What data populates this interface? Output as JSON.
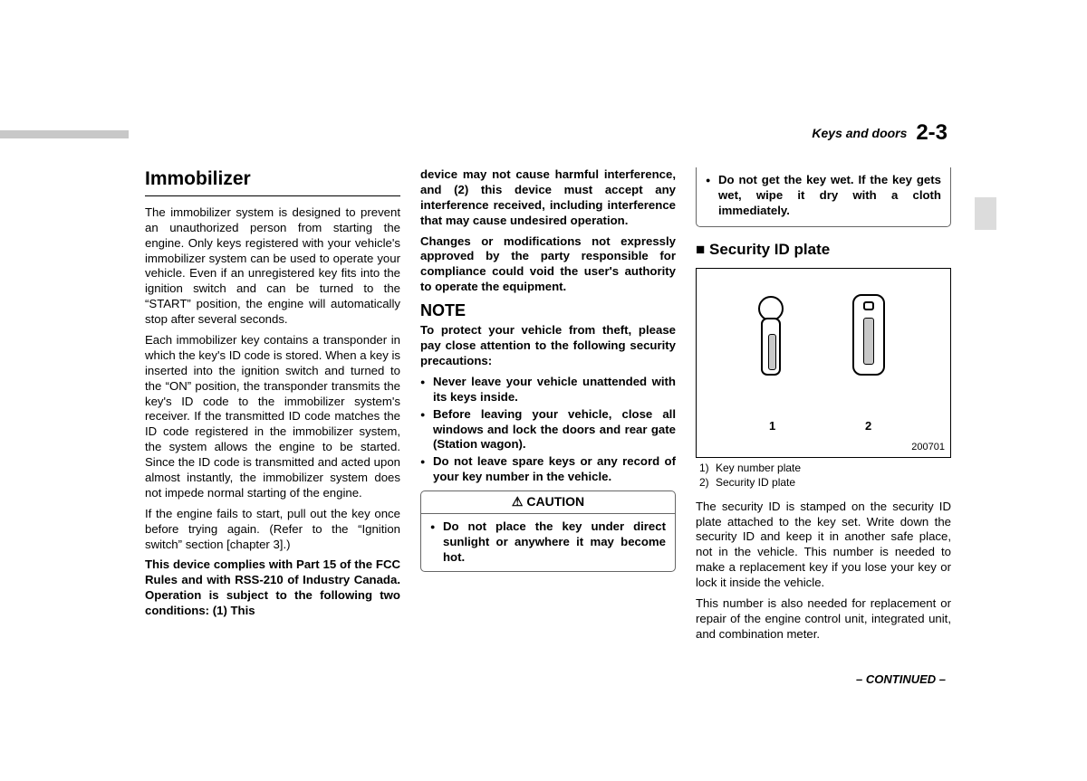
{
  "header": {
    "section": "Keys and doors",
    "page": "2-3"
  },
  "col1": {
    "title": "Immobilizer",
    "p1": "The immobilizer system is designed to prevent an unauthorized person from starting the engine. Only keys registered with your vehicle's immobilizer system can be used to operate your vehicle. Even if an unregistered key fits into the ignition switch and can be turned to the “START” position, the engine will automatically stop after several seconds.",
    "p2": "Each immobilizer key contains a transponder in which the key's ID code is stored. When a key is inserted into the ignition switch and turned to the “ON” position, the transponder transmits the key's ID code to the immobilizer system's receiver. If the transmitted ID code matches the ID code registered in the immobilizer system, the system allows the engine to be started. Since the ID code is transmitted and acted upon almost instantly, the immobilizer system does not impede normal starting of the engine.",
    "p3": "If the engine fails to start, pull out the key once before trying again. (Refer to the “Ignition switch” section [chapter 3].)",
    "p4": "This device complies with Part 15 of the FCC Rules and with RSS-210 of Industry Canada. Operation is subject to the following two conditions: (1) This"
  },
  "col2": {
    "p1": "device may not cause harmful interference, and (2) this device must accept any interference received, including interference that may cause undesired operation.",
    "p2": "Changes or modifications not expressly approved by the party responsible for compliance could void the user's authority to operate the equipment.",
    "note_head": "NOTE",
    "note_intro": "To protect your vehicle from theft, please pay close attention to the following security precautions:",
    "b1": "Never leave your vehicle unattended with its keys inside.",
    "b2": "Before leaving your vehicle, close all windows and lock the doors and rear gate (Station wagon).",
    "b3": "Do not leave spare keys or any record of your key number in the vehicle.",
    "caution_label": "CAUTION",
    "c1": "Do not place the key under direct sunlight or anywhere it may become hot."
  },
  "col3": {
    "top1": "Do not get the key wet. If the key gets wet, wipe it dry with a cloth immediately.",
    "subhead": "Security ID plate",
    "fig_code": "200701",
    "label1": "1",
    "label2": "2",
    "legend1": "Key number plate",
    "legend2": "Security ID plate",
    "p1": "The security ID is stamped on the security ID plate attached to the key set. Write down the security ID and keep it in another safe place, not in the vehicle. This number is needed to make a replacement key if you lose your key or lock it inside the vehicle.",
    "p2": "This number is also needed for replacement or repair of the engine control unit, integrated unit, and combination meter."
  },
  "footer": {
    "continued": "– CONTINUED –"
  }
}
